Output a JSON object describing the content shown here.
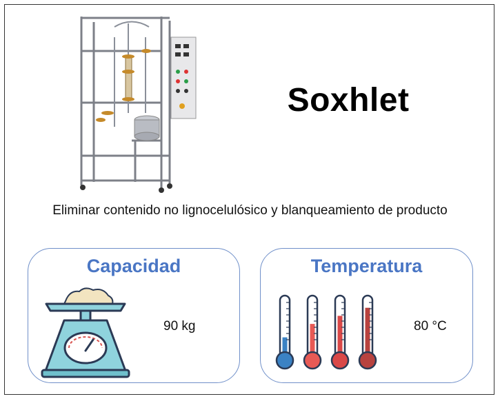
{
  "title": "Soxhlet",
  "description": "Eliminar contenido no lignocelulósico y blanqueamiento de producto",
  "capacity": {
    "label": "Capacidad",
    "value": "90 kg",
    "icon": "weighing-scale-icon"
  },
  "temperature": {
    "label": "Temperatura",
    "value": "80 °C",
    "icon": "thermometers-icon",
    "thermometer_levels": [
      0.3,
      0.55,
      0.7,
      0.85
    ],
    "thermometer_colors": [
      "#3b82c4",
      "#e85a55",
      "#d94848",
      "#b8423f"
    ]
  },
  "colors": {
    "accent": "#4a76c4",
    "card_border": "#6f8fc9"
  }
}
